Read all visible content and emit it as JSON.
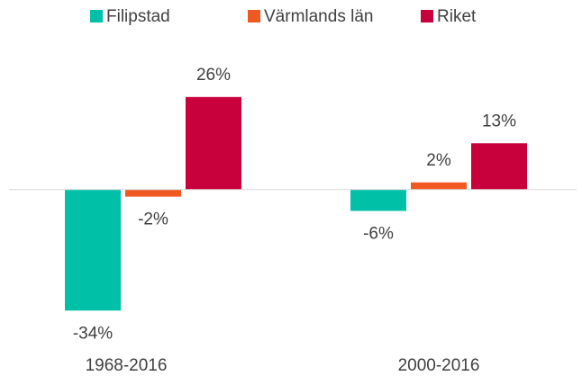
{
  "chart_data": {
    "type": "bar",
    "categories": [
      "1968-2016",
      "2000-2016"
    ],
    "series": [
      {
        "name": "Filipstad",
        "color": "#00c0a8",
        "values": [
          -34,
          -6
        ],
        "value_labels": [
          "-34%",
          "-6%"
        ]
      },
      {
        "name": "Värmlands län",
        "color": "#f05a22",
        "values": [
          -2,
          2
        ],
        "value_labels": [
          "-2%",
          "2%"
        ]
      },
      {
        "name": "Riket",
        "color": "#c8003c",
        "values": [
          26,
          13
        ],
        "value_labels": [
          "26%",
          "13%"
        ]
      }
    ],
    "ylim": [
      -40,
      30
    ],
    "legend": "top"
  }
}
